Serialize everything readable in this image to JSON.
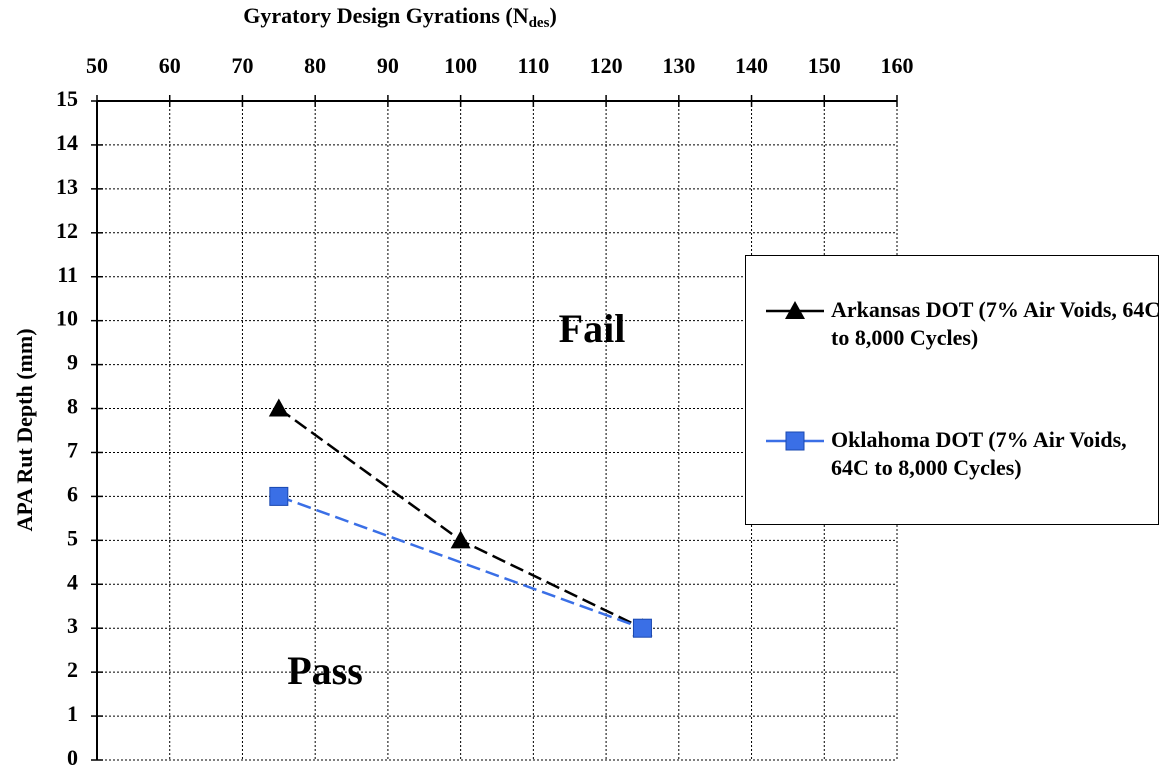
{
  "chart_data": {
    "type": "line",
    "x_label": [
      "Gyratory Design Gyrations (N",
      "des",
      ")"
    ],
    "y_label": "APA Rut Depth (mm)",
    "xlim": [
      50,
      160
    ],
    "xticks": [
      50,
      60,
      70,
      80,
      90,
      100,
      110,
      120,
      130,
      140,
      150,
      160
    ],
    "ylim": [
      0,
      15
    ],
    "yticks": [
      0,
      1,
      2,
      3,
      4,
      5,
      6,
      7,
      8,
      9,
      10,
      11,
      12,
      13,
      14,
      15
    ],
    "grid": true,
    "annotations": [
      "Fail",
      "Pass"
    ],
    "series": [
      {
        "name": "Arkansas DOT (7% Air Voids, 64C to 8,000 Cycles)",
        "color": "#000000",
        "marker": "triangle",
        "x": [
          75,
          100,
          125
        ],
        "values": [
          8,
          5,
          3
        ]
      },
      {
        "name": "Oklahoma DOT (7% Air Voids, 64C to 8,000 Cycles)",
        "color": "#3a6fe6",
        "marker": "square",
        "x": [
          75,
          125
        ],
        "values": [
          6,
          3
        ]
      }
    ]
  }
}
